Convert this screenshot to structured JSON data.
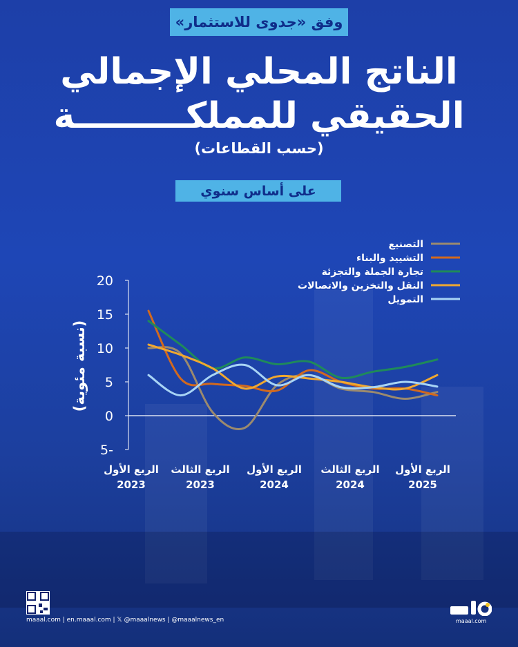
{
  "source_badge": "وفق «جدوى للاستثمار»",
  "title_line1": "الناتج المحلي الإجمالي",
  "title_line2": "الحقيقي للمملكـــــــــة",
  "subtitle": "(حسب القطاعات)",
  "basis": "على أساس سنوي",
  "chart_data": {
    "type": "line",
    "ylabel": "(نسبة مئوية)",
    "ylim": [
      -5,
      20
    ],
    "yticks": [
      "20",
      "15",
      "10",
      "5",
      "0",
      "5-"
    ],
    "x_tick_labels": [
      {
        "line1": "الربع الأول",
        "line2": "2023"
      },
      {
        "line1": "الربع الثالث",
        "line2": "2023"
      },
      {
        "line1": "الربع الأول",
        "line2": "2024"
      },
      {
        "line1": "الربع الثالث",
        "line2": "2024"
      },
      {
        "line1": "الربع الأول",
        "line2": "2025"
      }
    ],
    "x": [
      0,
      1,
      2,
      3,
      4,
      5,
      6,
      7,
      8,
      9
    ],
    "series": [
      {
        "name": "التصنيع",
        "color": "#9b8a6e",
        "values": [
          10.0,
          9.2,
          0.5,
          -1.8,
          4.5,
          6.0,
          4.0,
          3.5,
          2.5,
          3.5
        ]
      },
      {
        "name": "التشييد والبناء",
        "color": "#d2691e",
        "values": [
          15.5,
          5.5,
          4.7,
          4.4,
          3.7,
          6.7,
          5.0,
          4.0,
          4.0,
          3.0
        ]
      },
      {
        "name": "تجارة الجملة والتجزئة",
        "color": "#1f8a5a",
        "values": [
          14.0,
          10.5,
          7.0,
          8.6,
          7.6,
          8.0,
          5.6,
          6.5,
          7.2,
          8.3
        ]
      },
      {
        "name": "النقل والتخزين والاتصالات",
        "color": "#f0a830",
        "values": [
          10.5,
          9.0,
          7.0,
          4.0,
          5.8,
          5.5,
          5.0,
          4.2,
          4.0,
          6.0
        ]
      },
      {
        "name": "التمويل",
        "color": "#a8d4f5",
        "values": [
          6.0,
          3.0,
          6.0,
          7.5,
          4.5,
          6.0,
          4.2,
          4.2,
          5.0,
          4.3
        ]
      }
    ],
    "legend_position": "top-right",
    "grid": false
  },
  "footer": {
    "links": "maaal.com | en.maaal.com | 𝕏 @maaalnews | @maaalnews_en",
    "logo_text": "maaal.com"
  }
}
